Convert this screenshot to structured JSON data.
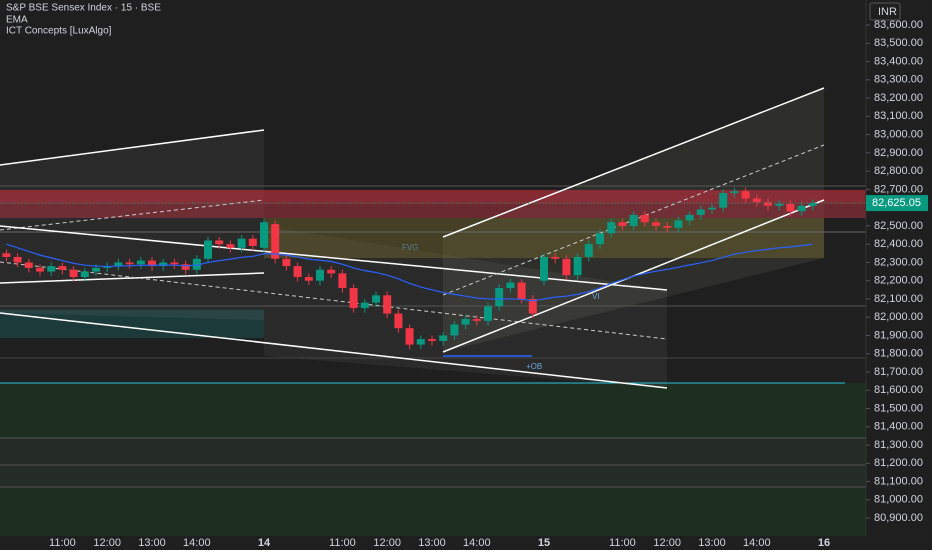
{
  "chart_data": {
    "type": "candlestick",
    "title": "S&P BSE Sensex Index · 15 · BSE",
    "indicator": "ICT Concepts [LuxAlgo]",
    "currency": "INR",
    "up_color": "#089981",
    "down_color": "#f23645",
    "categories": [
      null,
      null,
      null,
      null,
      null,
      "11:00",
      null,
      null,
      null,
      "12:00",
      null,
      null,
      null,
      "13:00",
      null,
      null,
      null,
      "14:00",
      null,
      null,
      null,
      null,
      null,
      "14",
      null,
      null,
      null,
      null,
      null,
      null,
      "11:00",
      null,
      null,
      null,
      "12:00",
      null,
      null,
      null,
      "13:00",
      null,
      null,
      null,
      "14:00",
      null,
      null,
      null,
      null,
      null,
      "15",
      null,
      null,
      null,
      null,
      null,
      null,
      "11:00",
      null,
      null,
      null,
      "12:00",
      null,
      null,
      null,
      "13:00",
      null,
      null,
      null,
      "14:00",
      null,
      null,
      null,
      null,
      null,
      "16"
    ],
    "open": [
      82350,
      82330,
      82300,
      82270,
      82250,
      82280,
      82260,
      82220,
      82250,
      82270,
      82280,
      82300,
      82290,
      82310,
      82280,
      82300,
      82290,
      82260,
      82320,
      82420,
      82400,
      82380,
      82430,
      82380,
      82510,
      82320,
      82280,
      82220,
      82200,
      82260,
      82240,
      82160,
      82050,
      82080,
      82120,
      82020,
      81940,
      81850,
      81880,
      81870,
      81900,
      81960,
      81990,
      81980,
      82060,
      82160,
      82190,
      82100,
      82200,
      82330,
      82320,
      82230,
      82330,
      82400,
      82460,
      82520,
      82500,
      82560,
      82520,
      82500,
      82490,
      82530,
      82560,
      82590,
      82600,
      82680,
      82690,
      82650,
      82630,
      82610,
      82620,
      82580,
      82610,
      null
    ],
    "high": [
      82370,
      82350,
      82320,
      82290,
      82300,
      82300,
      82280,
      82270,
      82290,
      82300,
      82320,
      82320,
      82330,
      82330,
      82320,
      82320,
      82310,
      82340,
      82440,
      82440,
      82420,
      82450,
      82450,
      82540,
      82530,
      82340,
      82300,
      82240,
      82280,
      82280,
      82260,
      82180,
      82100,
      82140,
      82140,
      82040,
      81960,
      81900,
      81900,
      81920,
      81980,
      82010,
      82010,
      82080,
      82180,
      82210,
      82210,
      82120,
      82350,
      82350,
      82340,
      82350,
      82420,
      82480,
      82540,
      82540,
      82580,
      82580,
      82540,
      82520,
      82550,
      82580,
      82610,
      82620,
      82700,
      82710,
      82710,
      82670,
      82650,
      82640,
      82640,
      82630,
      82645,
      null
    ],
    "low": [
      82305,
      82275,
      82245,
      82225,
      82225,
      82235,
      82195,
      82195,
      82225,
      82245,
      82255,
      82265,
      82265,
      82255,
      82255,
      82265,
      82235,
      82235,
      82295,
      82375,
      82355,
      82355,
      82365,
      82355,
      82295,
      82255,
      82195,
      82175,
      82175,
      82215,
      82135,
      82025,
      82025,
      82055,
      81995,
      81915,
      81825,
      81825,
      81845,
      81845,
      81875,
      81935,
      81955,
      81955,
      82035,
      82135,
      82075,
      81995,
      82175,
      82295,
      82205,
      82205,
      82305,
      82375,
      82435,
      82475,
      82475,
      82495,
      82475,
      82465,
      82465,
      82505,
      82535,
      82565,
      82575,
      82655,
      82625,
      82605,
      82585,
      82585,
      82555,
      82555,
      82585,
      null
    ],
    "close": [
      82330,
      82300,
      82270,
      82250,
      82280,
      82260,
      82220,
      82250,
      82270,
      82280,
      82300,
      82290,
      82310,
      82280,
      82300,
      82290,
      82260,
      82320,
      82420,
      82400,
      82380,
      82430,
      82390,
      82520,
      82320,
      82280,
      82220,
      82200,
      82260,
      82240,
      82160,
      82050,
      82080,
      82120,
      82020,
      81940,
      81850,
      81880,
      81870,
      81900,
      81960,
      81990,
      81980,
      82060,
      82160,
      82190,
      82100,
      82020,
      82330,
      82320,
      82230,
      82330,
      82400,
      82460,
      82520,
      82500,
      82560,
      82520,
      82500,
      82490,
      82530,
      82560,
      82590,
      82600,
      82680,
      82690,
      82650,
      82630,
      82610,
      82620,
      82580,
      82610,
      82625,
      null
    ],
    "ema": {
      "name": "EMA",
      "color": "#2962ff",
      "values": [
        82400,
        82380,
        82360,
        82340,
        82325,
        82310,
        82295,
        82285,
        82280,
        82278,
        82280,
        82282,
        82285,
        82284,
        82285,
        82285,
        82282,
        82285,
        82300,
        82310,
        82318,
        82328,
        82333,
        82348,
        82346,
        82340,
        82330,
        82318,
        82312,
        82305,
        82290,
        82270,
        82255,
        82245,
        82230,
        82210,
        82185,
        82165,
        82150,
        82135,
        82125,
        82115,
        82105,
        82100,
        82100,
        82100,
        82098,
        82090,
        82100,
        82110,
        82115,
        82125,
        82140,
        82160,
        82185,
        82205,
        82225,
        82240,
        82252,
        82262,
        82274,
        82286,
        82298,
        82310,
        82328,
        82345,
        82356,
        82365,
        82372,
        82380,
        82385,
        82392,
        82400,
        null
      ]
    },
    "last_price": {
      "value": 82625.05,
      "label": "82,625.05"
    },
    "annotations": [
      "VI",
      "+OB",
      "FVG"
    ],
    "ylim": [
      80802,
      83737
    ],
    "yticks": [
      {
        "value": 83600,
        "label": "83,600.00"
      },
      {
        "value": 83500,
        "label": "83,500.00"
      },
      {
        "value": 83400,
        "label": "83,400.00"
      },
      {
        "value": 83300,
        "label": "83,300.00"
      },
      {
        "value": 83200,
        "label": "83,200.00"
      },
      {
        "value": 83100,
        "label": "83,100.00"
      },
      {
        "value": 83000,
        "label": "83,000.00"
      },
      {
        "value": 82900,
        "label": "82,900.00"
      },
      {
        "value": 82800,
        "label": "82,800.00"
      },
      {
        "value": 82700,
        "label": "82,700.00"
      },
      {
        "value": 82500,
        "label": "82,500.00"
      },
      {
        "value": 82400,
        "label": "82,400.00"
      },
      {
        "value": 82300,
        "label": "82,300.00"
      },
      {
        "value": 82200,
        "label": "82,200.00"
      },
      {
        "value": 82100,
        "label": "82,100.00"
      },
      {
        "value": 82000,
        "label": "82,000.00"
      },
      {
        "value": 81900,
        "label": "81,900.00"
      },
      {
        "value": 81800,
        "label": "81,800.00"
      },
      {
        "value": 81700,
        "label": "81,700.00"
      },
      {
        "value": 81600,
        "label": "81,600.00"
      },
      {
        "value": 81500,
        "label": "81,500.00"
      },
      {
        "value": 81400,
        "label": "81,400.00"
      },
      {
        "value": 81300,
        "label": "81,300.00"
      },
      {
        "value": 81200,
        "label": "81,200.00"
      },
      {
        "value": 81100,
        "label": "81,100.00"
      },
      {
        "value": 81000,
        "label": "81,000.00"
      },
      {
        "value": 80900,
        "label": "80,900.00"
      }
    ],
    "grid": false
  }
}
